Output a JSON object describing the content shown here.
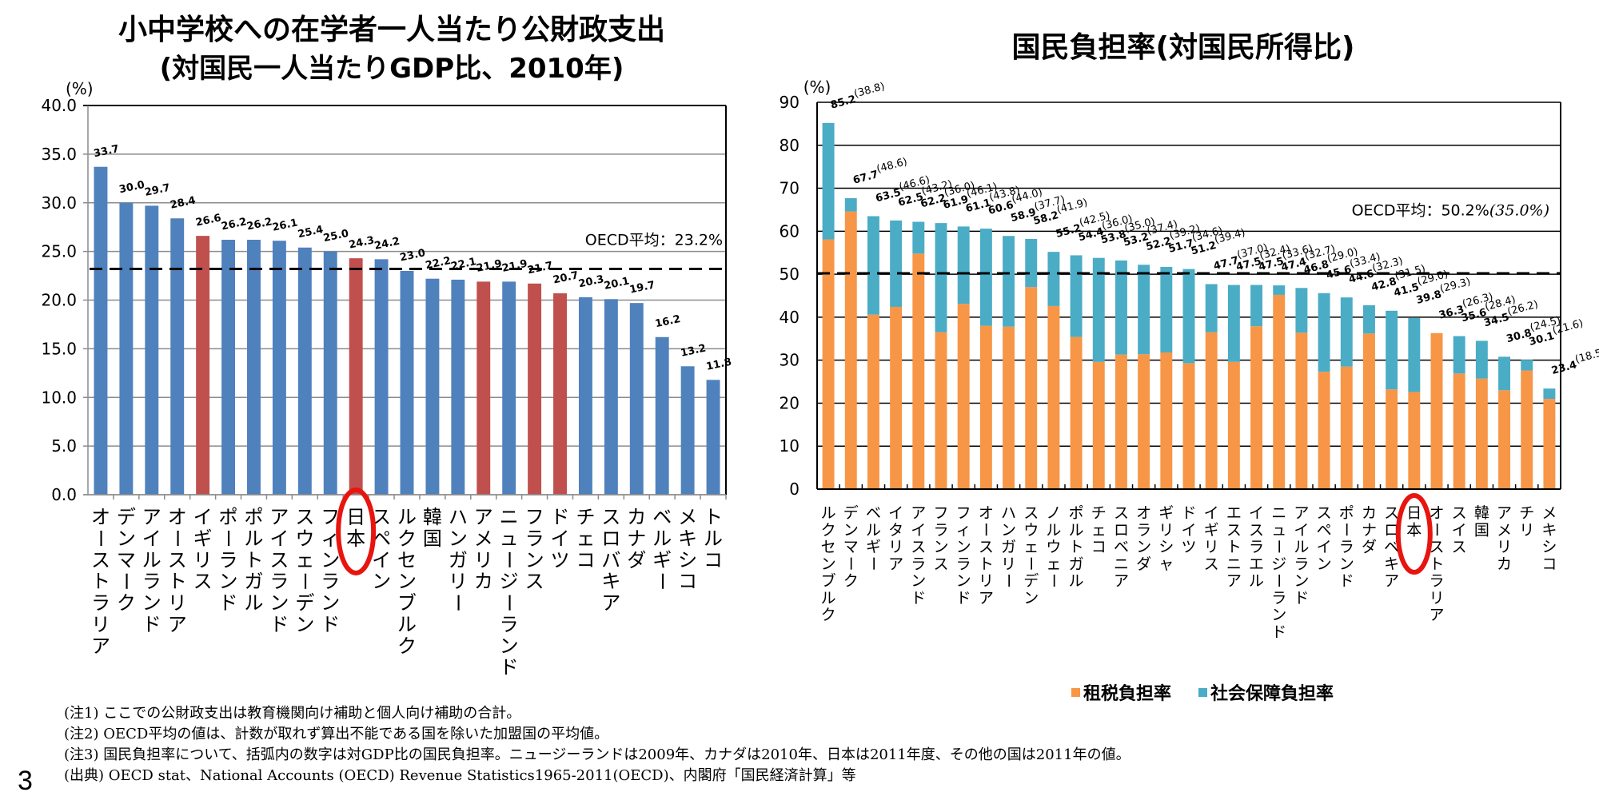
{
  "page_number": "3",
  "left_title_line1": "小中学校への在学者一人当たり公財政支出",
  "left_title_line2": "(対国民一人当たりGDP比、2010年)",
  "right_title": "国民負担率(対国民所得比)",
  "legend": {
    "tax_label": "租税負担率",
    "social_label": "社会保障負担率"
  },
  "notes": [
    "(注1)  ここでの公財政支出は教育機関向け補助と個人向け補助の合計。",
    "(注2)  OECD平均の値は、計数が取れず算出不能である国を除いた加盟国の平均値。",
    "(注3)  国民負担率について、括弧内の数字は対GDP比の国民負担率。ニュージーランドは2009年、カナダは2010年、日本は2011年度、その他の国は2011年の値。",
    "(出典) OECD stat、National Accounts (OECD)  Revenue Statistics1965-2011(OECD)、内閣府「国民経済計算」等"
  ],
  "colors": {
    "blue": "#4F81BD",
    "red": "#C0504D",
    "tax": "#F79646",
    "social": "#4BACC6",
    "highlight_circle": "#E8140F"
  },
  "chart_data": [
    {
      "type": "bar",
      "title": "小中学校への在学者一人当たり公財政支出 (対国民一人当たりGDP比、2010年)",
      "ylabel": "(%)",
      "ylim": [
        0,
        40
      ],
      "yticks": [
        "0.0",
        "5.0",
        "10.0",
        "15.0",
        "20.0",
        "25.0",
        "30.0",
        "35.0",
        "40.0"
      ],
      "grid": true,
      "categories": [
        "オーストラリア",
        "デンマーク",
        "アイルランド",
        "オーストリア",
        "イギリス",
        "ポーランド",
        "ポルトガル",
        "アイスランド",
        "スウェーデン",
        "フィンランド",
        "日本",
        "スペイン",
        "ルクセンブルク",
        "韓国",
        "ハンガリー",
        "アメリカ",
        "ニュージーランド",
        "フランス",
        "ドイツ",
        "チェコ",
        "スロバキア",
        "カナダ",
        "ベルギー",
        "メキシコ",
        "トルコ"
      ],
      "values": [
        33.7,
        30.0,
        29.7,
        28.4,
        26.6,
        26.2,
        26.2,
        26.1,
        25.4,
        25.0,
        24.3,
        24.2,
        23.0,
        22.2,
        22.1,
        21.9,
        21.9,
        21.7,
        20.7,
        20.3,
        20.1,
        19.7,
        16.2,
        13.2,
        11.8
      ],
      "value_labels": [
        "33.7",
        "30.0",
        "29.7",
        "28.4",
        "26.6",
        "26.2",
        "26.2",
        "26.1",
        "25.4",
        "25.0",
        "24.3",
        "24.2",
        "23.0",
        "22.2",
        "22.1",
        "21.9",
        "21.9",
        "21.7",
        "20.7",
        "20.3",
        "20.1",
        "19.7",
        "16.2",
        "13.2",
        "11.8"
      ],
      "highlighted": [
        "イギリス",
        "日本",
        "アメリカ",
        "フランス",
        "ドイツ"
      ],
      "circled": "日本",
      "reference_line": {
        "value": 23.2,
        "label": "OECD平均：23.2%",
        "style": "dashed"
      }
    },
    {
      "type": "bar",
      "stacked": true,
      "title": "国民負担率(対国民所得比)",
      "ylabel": "(%)",
      "ylim": [
        0,
        90
      ],
      "yticks": [
        "0",
        "10",
        "20",
        "30",
        "40",
        "50",
        "60",
        "70",
        "80",
        "90"
      ],
      "grid": true,
      "legend_position": "bottom",
      "categories": [
        "ルクセンブルク",
        "デンマーク",
        "ベルギー",
        "イタリア",
        "アイスランド",
        "フランス",
        "フィンランド",
        "オーストリア",
        "ハンガリー",
        "スウェーデン",
        "ノルウェー",
        "ポルトガル",
        "チェコ",
        "スロベニア",
        "オランダ",
        "ギリシャ",
        "ドイツ",
        "イギリス",
        "エストニア",
        "イスラエル",
        "ニュージーランド",
        "アイルランド",
        "スペイン",
        "ポーランド",
        "カナダ",
        "スロベキア",
        "日本",
        "オーストラリア",
        "スイス",
        "韓国",
        "アメリカ",
        "チリ",
        "メキシコ"
      ],
      "totals": [
        85.2,
        67.7,
        63.5,
        62.5,
        62.2,
        61.9,
        61.1,
        60.6,
        58.9,
        58.2,
        55.2,
        54.4,
        53.8,
        53.2,
        52.2,
        51.7,
        51.2,
        47.7,
        47.5,
        47.5,
        47.4,
        46.8,
        45.6,
        44.6,
        42.8,
        41.5,
        39.8,
        36.3,
        35.6,
        34.5,
        30.8,
        30.1,
        23.4
      ],
      "gdp_ratio_labels": [
        "(38.8)",
        "(48.6)",
        "(46.6)",
        "(43.2)",
        "(36.0)",
        "(46.1)",
        "(43.8)",
        "(44.0)",
        "(37.7)",
        "(41.9)",
        "(42.5)",
        "(36.0)",
        "(35.0)",
        "(37.4)",
        "(39.2)",
        "(34.6)",
        "(39.4)",
        "(37.0)",
        "(32.4)",
        "(33.6)",
        "(32.7)",
        "(29.0)",
        "(33.4)",
        "(32.3)",
        "(31.5)",
        "(29.0)",
        "(29.3)",
        "(26.3)",
        "(28.4)",
        "(26.2)",
        "(24.5)",
        "(21.6)",
        "(18.5)"
      ],
      "series": [
        {
          "name": "租税負担率",
          "values": [
            58.1,
            64.6,
            40.6,
            42.4,
            54.8,
            36.5,
            43.1,
            38.0,
            37.8,
            47.0,
            42.6,
            35.4,
            29.6,
            31.3,
            31.4,
            31.8,
            29.3,
            36.5,
            29.6,
            37.9,
            45.2,
            36.4,
            27.3,
            28.5,
            36.2,
            23.2,
            22.6,
            36.3,
            26.9,
            25.7,
            23.0,
            27.6,
            21.0
          ]
        },
        {
          "name": "社会保障負担率",
          "values": [
            27.1,
            3.1,
            22.9,
            20.1,
            7.4,
            25.4,
            18.0,
            22.6,
            21.1,
            11.2,
            12.6,
            19.0,
            24.2,
            21.9,
            20.8,
            19.9,
            21.9,
            11.2,
            17.9,
            9.6,
            2.2,
            10.4,
            18.3,
            16.1,
            6.6,
            18.3,
            17.2,
            0.0,
            8.7,
            8.8,
            7.8,
            2.5,
            2.4
          ]
        }
      ],
      "circled": "日本",
      "reference_line": {
        "value": 50.2,
        "label": "OECD平均：50.2%",
        "label_gdp": "(35.0%)",
        "style": "dashed"
      }
    }
  ]
}
